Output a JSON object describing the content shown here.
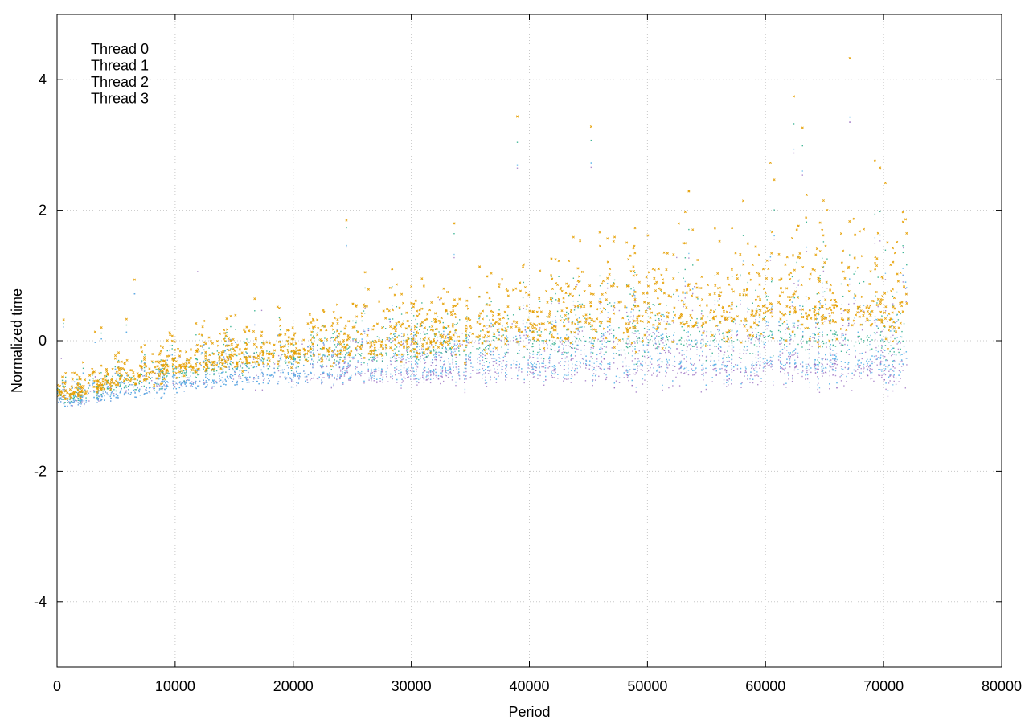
{
  "chart_data": {
    "type": "scatter",
    "title": "",
    "xlabel": "Period",
    "ylabel": "Normalized time",
    "xlim": [
      0,
      80000
    ],
    "ylim": [
      -5,
      5
    ],
    "x_ticks": [
      0,
      10000,
      20000,
      30000,
      40000,
      50000,
      60000,
      70000,
      80000
    ],
    "y_ticks": [
      -4,
      -2,
      0,
      2,
      4
    ],
    "x_tick_labels": [
      "0",
      "10000",
      "20000",
      "30000",
      "40000",
      "50000",
      "60000",
      "70000",
      "80000"
    ],
    "y_tick_labels": [
      "-4",
      "-2",
      "0",
      "2",
      "4"
    ],
    "grid": true,
    "legend_position": "top-left",
    "x_data_range": [
      0,
      72000
    ],
    "series": [
      {
        "name": "Thread 0",
        "color": "#9467bd",
        "marker": "dot",
        "description_trend": [
          {
            "x": 0,
            "y": -0.95
          },
          {
            "x": 5000,
            "y": -0.8
          },
          {
            "x": 10000,
            "y": -0.65
          },
          {
            "x": 20000,
            "y": -0.5
          },
          {
            "x": 30000,
            "y": -0.45
          },
          {
            "x": 40000,
            "y": -0.4
          },
          {
            "x": 50000,
            "y": -0.38
          },
          {
            "x": 60000,
            "y": -0.35
          },
          {
            "x": 72000,
            "y": -0.35
          }
        ]
      },
      {
        "name": "Thread 1",
        "color": "#009e73",
        "marker": "dot",
        "description_trend": [
          {
            "x": 0,
            "y": -0.9
          },
          {
            "x": 5000,
            "y": -0.7
          },
          {
            "x": 10000,
            "y": -0.5
          },
          {
            "x": 20000,
            "y": -0.25
          },
          {
            "x": 30000,
            "y": -0.1
          },
          {
            "x": 40000,
            "y": 0.0
          },
          {
            "x": 50000,
            "y": 0.05
          },
          {
            "x": 60000,
            "y": 0.1
          },
          {
            "x": 72000,
            "y": 0.1
          }
        ]
      },
      {
        "name": "Thread 2",
        "color": "#56b4e9",
        "marker": "dot",
        "description_trend": [
          {
            "x": 0,
            "y": -0.95
          },
          {
            "x": 5000,
            "y": -0.8
          },
          {
            "x": 10000,
            "y": -0.65
          },
          {
            "x": 20000,
            "y": -0.5
          },
          {
            "x": 30000,
            "y": -0.4
          },
          {
            "x": 40000,
            "y": -0.35
          },
          {
            "x": 50000,
            "y": -0.3
          },
          {
            "x": 60000,
            "y": -0.3
          },
          {
            "x": 72000,
            "y": -0.25
          }
        ]
      },
      {
        "name": "Thread 3",
        "color": "#e69f00",
        "marker": "cross",
        "description_trend": [
          {
            "x": 0,
            "y": -0.85
          },
          {
            "x": 5000,
            "y": -0.6
          },
          {
            "x": 10000,
            "y": -0.4
          },
          {
            "x": 20000,
            "y": -0.15
          },
          {
            "x": 30000,
            "y": 0.05
          },
          {
            "x": 40000,
            "y": 0.25
          },
          {
            "x": 50000,
            "y": 0.4
          },
          {
            "x": 60000,
            "y": 0.5
          },
          {
            "x": 72000,
            "y": 0.6
          }
        ]
      }
    ]
  }
}
